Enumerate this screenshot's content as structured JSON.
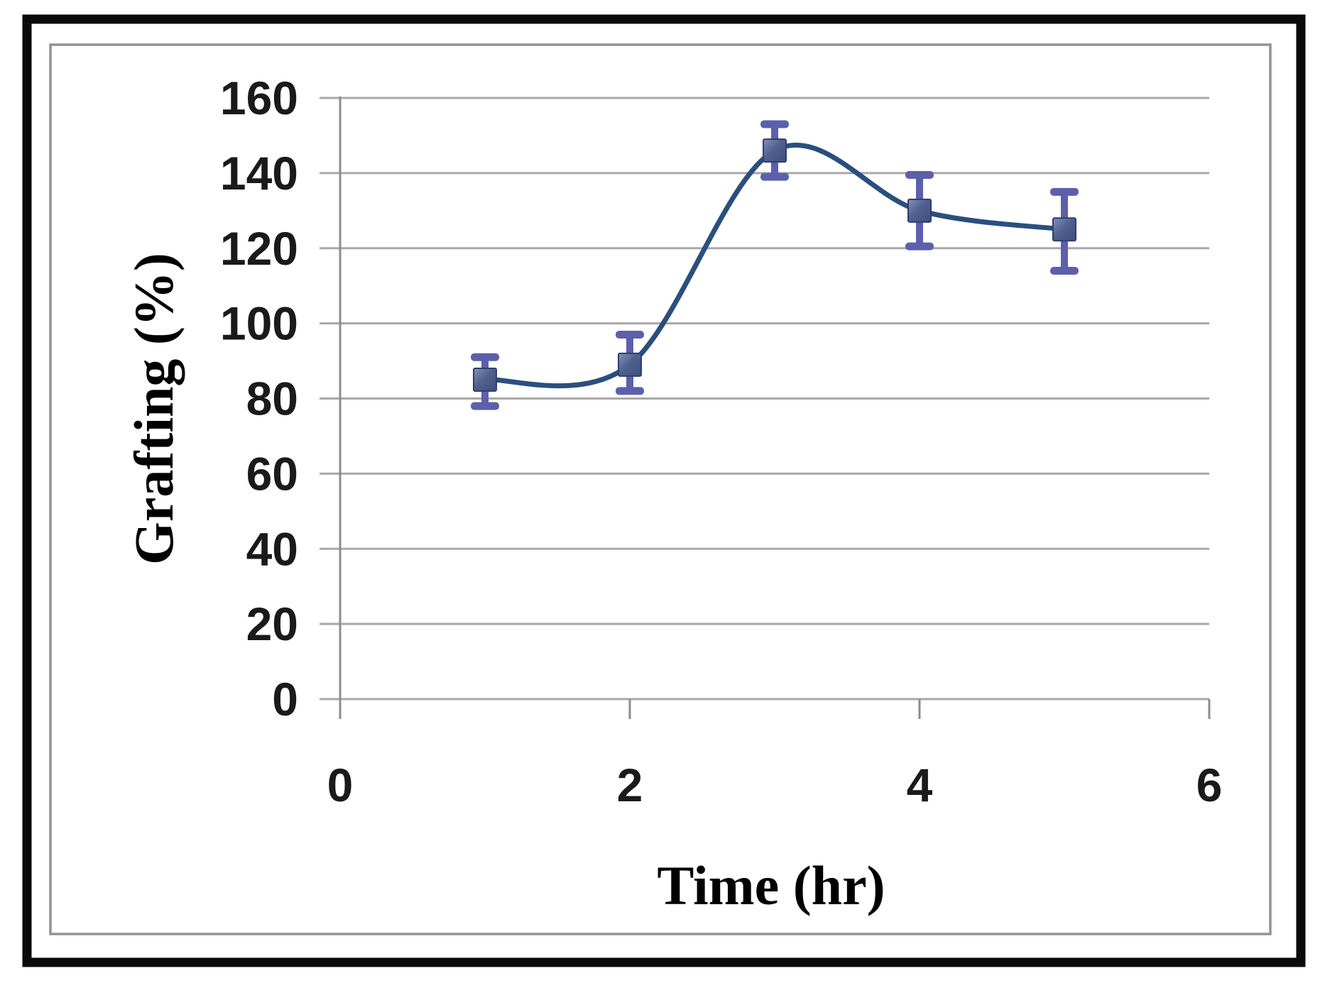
{
  "figure": {
    "background": "#ffffff",
    "outer_border_color": "#0a0a0a",
    "inner_border_color": "#929292"
  },
  "chart_data": {
    "type": "line",
    "title": "",
    "xlabel": "Time (hr)",
    "ylabel": "Grafting (%)",
    "x": [
      1,
      2,
      3,
      4,
      5
    ],
    "series": [
      {
        "name": "Grafting (%)",
        "values": [
          85,
          89,
          146,
          130,
          125
        ],
        "error_up": [
          6,
          8,
          7,
          9.5,
          10
        ],
        "error_down": [
          7,
          7,
          7,
          9.5,
          11
        ]
      }
    ],
    "xlim": [
      0,
      6
    ],
    "ylim": [
      0,
      160
    ],
    "x_ticks": [
      0,
      2,
      4,
      6
    ],
    "y_ticks": [
      0,
      20,
      40,
      60,
      80,
      100,
      120,
      140,
      160
    ],
    "grid": "horizontal",
    "legend": "none",
    "smooth": true,
    "marker": "square",
    "colors": {
      "line": "#2a4f7d",
      "marker_fill": "#51618f",
      "marker_fill_light": "#8693b8",
      "marker_fill_dark": "#3d4d7e",
      "marker_border": "#2f3f6b",
      "error_bar": "#5c60aa",
      "gridline": "#a8a8a8",
      "axis_line": "#8c8c8c",
      "tick_text": "#1a1a1a",
      "title_text": "#000000"
    }
  }
}
